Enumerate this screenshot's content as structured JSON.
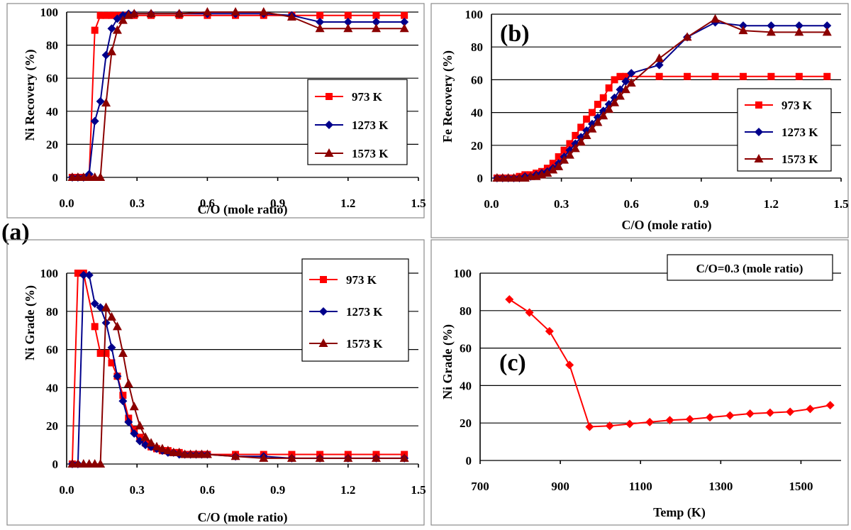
{
  "panel_labels": {
    "a": "(a)",
    "b": "(b)",
    "c": "(c)"
  },
  "colors": {
    "s973": "#ff0000",
    "s1273": "#00008b",
    "s1573": "#8b0000"
  },
  "chart_data": [
    {
      "id": "ni_recovery",
      "type": "line",
      "ylabel": "Ni Recovery (%)",
      "xlabel": "C/O (mole ratio)",
      "xlim": [
        0,
        1.5
      ],
      "ylim": [
        0,
        100
      ],
      "xticks": [
        "0.0",
        "0.3",
        "0.6",
        "0.9",
        "1.2",
        "1.5"
      ],
      "yticks": [
        "0",
        "20",
        "40",
        "60",
        "80",
        "100"
      ],
      "legend_position": "bottom-right",
      "series": [
        {
          "name": "973 K",
          "color": "#ff0000",
          "marker": "square",
          "x": [
            0.024,
            0.048,
            0.072,
            0.096,
            0.12,
            0.144,
            0.168,
            0.192,
            0.216,
            0.24,
            0.264,
            0.288,
            0.36,
            0.48,
            0.6,
            0.72,
            0.84,
            0.96,
            1.08,
            1.2,
            1.32,
            1.44
          ],
          "y": [
            0,
            0,
            0,
            0,
            89,
            98,
            98,
            98,
            98,
            98,
            98,
            98,
            98,
            98,
            98,
            98,
            98,
            98,
            98,
            98,
            98,
            98
          ]
        },
        {
          "name": "1273 K",
          "color": "#00008b",
          "marker": "diamond",
          "x": [
            0.024,
            0.048,
            0.072,
            0.096,
            0.12,
            0.144,
            0.168,
            0.192,
            0.216,
            0.24,
            0.264,
            0.288,
            0.36,
            0.48,
            0.6,
            0.72,
            0.84,
            0.96,
            1.08,
            1.2,
            1.32,
            1.44
          ],
          "y": [
            0,
            0,
            0,
            2,
            34,
            46,
            74,
            90,
            96,
            98,
            99,
            99,
            99,
            99,
            99,
            99,
            99,
            98,
            94,
            94,
            94,
            94
          ]
        },
        {
          "name": "1573 K",
          "color": "#8b0000",
          "marker": "triangle",
          "x": [
            0.024,
            0.048,
            0.072,
            0.096,
            0.12,
            0.144,
            0.168,
            0.192,
            0.216,
            0.24,
            0.264,
            0.288,
            0.36,
            0.48,
            0.6,
            0.72,
            0.84,
            0.96,
            1.08,
            1.2,
            1.32,
            1.44
          ],
          "y": [
            0,
            0,
            0,
            0,
            0,
            0,
            45,
            76,
            89,
            95,
            98,
            99,
            99,
            99,
            100,
            100,
            100,
            97,
            90,
            90,
            90,
            90
          ]
        }
      ]
    },
    {
      "id": "fe_recovery",
      "type": "line",
      "ylabel": "Fe Recovery (%)",
      "xlabel": "C/O (mole ratio)",
      "xlim": [
        0,
        1.5
      ],
      "ylim": [
        0,
        100
      ],
      "xticks": [
        "0.0",
        "0.3",
        "0.6",
        "0.9",
        "1.2",
        "1.5"
      ],
      "yticks": [
        "0",
        "20",
        "40",
        "60",
        "80",
        "100"
      ],
      "legend_position": "bottom-right",
      "series": [
        {
          "name": "973 K",
          "color": "#ff0000",
          "marker": "square",
          "x": [
            0.024,
            0.048,
            0.072,
            0.096,
            0.12,
            0.144,
            0.168,
            0.192,
            0.216,
            0.24,
            0.264,
            0.288,
            0.312,
            0.336,
            0.36,
            0.384,
            0.408,
            0.432,
            0.456,
            0.48,
            0.504,
            0.528,
            0.552,
            0.576,
            0.72,
            0.84,
            0.96,
            1.08,
            1.2,
            1.32,
            1.44
          ],
          "y": [
            0,
            0,
            0,
            0,
            1,
            2,
            2,
            3,
            4,
            6,
            9,
            13,
            17,
            21,
            26,
            31,
            36,
            40,
            45,
            49,
            55,
            60,
            62,
            62,
            62,
            62,
            62,
            62,
            62,
            62,
            62
          ]
        },
        {
          "name": "1273 K",
          "color": "#00008b",
          "marker": "diamond",
          "x": [
            0.024,
            0.048,
            0.072,
            0.096,
            0.12,
            0.144,
            0.168,
            0.192,
            0.216,
            0.24,
            0.264,
            0.288,
            0.312,
            0.336,
            0.36,
            0.384,
            0.408,
            0.432,
            0.456,
            0.48,
            0.504,
            0.528,
            0.552,
            0.576,
            0.6,
            0.72,
            0.84,
            0.96,
            1.08,
            1.2,
            1.32,
            1.44
          ],
          "y": [
            0,
            0,
            0,
            0,
            0,
            1,
            1,
            2,
            3,
            4,
            6,
            9,
            13,
            17,
            21,
            25,
            29,
            33,
            37,
            41,
            45,
            49,
            54,
            59,
            64,
            69,
            86,
            95,
            93,
            93,
            93,
            93
          ]
        },
        {
          "name": "1573 K",
          "color": "#8b0000",
          "marker": "triangle",
          "x": [
            0.024,
            0.048,
            0.072,
            0.096,
            0.12,
            0.144,
            0.168,
            0.192,
            0.216,
            0.24,
            0.264,
            0.288,
            0.312,
            0.336,
            0.36,
            0.384,
            0.408,
            0.432,
            0.456,
            0.48,
            0.504,
            0.528,
            0.552,
            0.576,
            0.6,
            0.72,
            0.84,
            0.96,
            1.08,
            1.2,
            1.32,
            1.44
          ],
          "y": [
            0,
            0,
            0,
            0,
            0,
            0,
            1,
            1,
            2,
            3,
            5,
            7,
            11,
            14,
            18,
            22,
            26,
            30,
            34,
            38,
            42,
            46,
            50,
            54,
            58,
            73,
            86,
            97,
            90,
            89,
            89,
            89
          ]
        }
      ]
    },
    {
      "id": "ni_grade_co",
      "type": "line",
      "ylabel": "Ni Grade (%)",
      "xlabel": "C/O (mole ratio)",
      "xlim": [
        0,
        1.5
      ],
      "ylim": [
        0,
        100
      ],
      "xticks": [
        "0.0",
        "0.3",
        "0.6",
        "0.9",
        "1.2",
        "1.5"
      ],
      "yticks": [
        "0",
        "20",
        "40",
        "60",
        "80",
        "100"
      ],
      "legend_position": "top-right",
      "series": [
        {
          "name": "973 K",
          "color": "#ff0000",
          "marker": "square",
          "x": [
            0.024,
            0.048,
            0.072,
            0.12,
            0.144,
            0.168,
            0.192,
            0.216,
            0.24,
            0.264,
            0.288,
            0.312,
            0.336,
            0.36,
            0.384,
            0.408,
            0.432,
            0.456,
            0.48,
            0.504,
            0.528,
            0.552,
            0.576,
            0.6,
            0.72,
            0.84,
            0.96,
            1.08,
            1.2,
            1.32,
            1.44
          ],
          "y": [
            0,
            100,
            100,
            72,
            58,
            58,
            53,
            46,
            36,
            24,
            18,
            14,
            11,
            9,
            8,
            7,
            7,
            6,
            6,
            5,
            5,
            5,
            5,
            5,
            5,
            5,
            5,
            5,
            5,
            5,
            5
          ]
        },
        {
          "name": "1273 K",
          "color": "#00008b",
          "marker": "diamond",
          "x": [
            0.024,
            0.048,
            0.072,
            0.096,
            0.12,
            0.144,
            0.168,
            0.192,
            0.216,
            0.24,
            0.264,
            0.288,
            0.312,
            0.336,
            0.36,
            0.384,
            0.408,
            0.432,
            0.456,
            0.48,
            0.504,
            0.528,
            0.552,
            0.576,
            0.6,
            0.72,
            0.84,
            0.96,
            1.08,
            1.2,
            1.32,
            1.44
          ],
          "y": [
            0,
            0,
            99,
            99,
            84,
            82,
            74,
            61,
            46,
            33,
            22,
            16,
            12,
            10,
            9,
            8,
            7,
            6,
            6,
            5,
            5,
            5,
            5,
            5,
            5,
            4,
            4,
            3,
            3,
            3,
            3,
            3
          ]
        },
        {
          "name": "1573 K",
          "color": "#8b0000",
          "marker": "triangle",
          "x": [
            0.024,
            0.048,
            0.072,
            0.096,
            0.12,
            0.144,
            0.168,
            0.192,
            0.216,
            0.24,
            0.264,
            0.288,
            0.312,
            0.336,
            0.36,
            0.384,
            0.408,
            0.432,
            0.456,
            0.48,
            0.504,
            0.528,
            0.552,
            0.576,
            0.6,
            0.72,
            0.84,
            0.96,
            1.08,
            1.2,
            1.32,
            1.44
          ],
          "y": [
            0,
            0,
            0,
            0,
            0,
            0,
            82,
            77,
            72,
            58,
            42,
            30,
            20,
            14,
            11,
            9,
            8,
            7,
            6,
            6,
            5,
            5,
            5,
            5,
            5,
            4,
            3,
            3,
            3,
            3,
            3,
            3
          ]
        }
      ]
    },
    {
      "id": "ni_grade_temp",
      "type": "line",
      "ylabel": "Ni Grade (%)",
      "xlabel": "Temp (K)",
      "xlim": [
        700,
        1600
      ],
      "ylim": [
        0,
        100
      ],
      "xticks": [
        "700",
        "900",
        "1100",
        "1300",
        "1500"
      ],
      "yticks": [
        "0",
        "20",
        "40",
        "60",
        "80",
        "100"
      ],
      "legend_position": "none",
      "annotation": "C/O=0.3 (mole ratio)",
      "series": [
        {
          "name": "C/O=0.3",
          "color": "#ff0000",
          "marker": "diamond",
          "x": [
            773,
            823,
            873,
            923,
            973,
            1023,
            1073,
            1123,
            1173,
            1223,
            1273,
            1323,
            1373,
            1423,
            1473,
            1523,
            1573
          ],
          "y": [
            86,
            79,
            69,
            51,
            18,
            18.5,
            19.5,
            20.5,
            21.5,
            22,
            23,
            24,
            25,
            25.5,
            26,
            27.5,
            29.5
          ]
        }
      ]
    }
  ]
}
